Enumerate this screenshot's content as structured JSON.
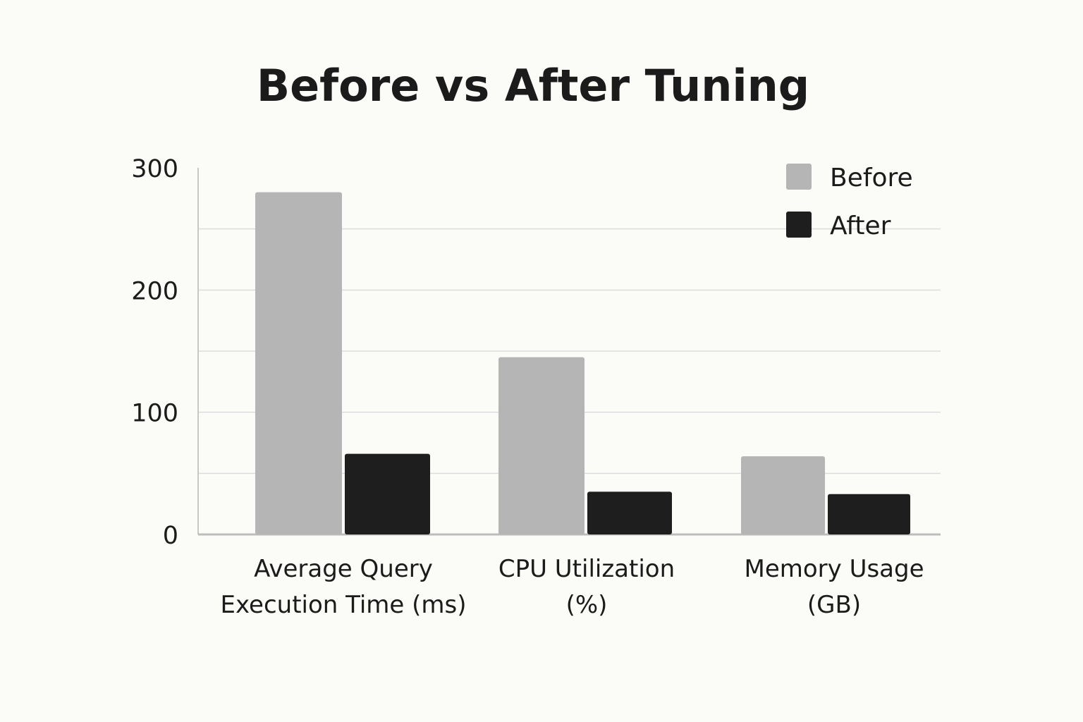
{
  "chart_data": {
    "type": "bar",
    "title": "Before vs After Tuning",
    "categories": [
      [
        "Average Query",
        "Execution Time (ms)"
      ],
      [
        "CPU Utilization",
        "(%)"
      ],
      [
        "Memory Usage",
        "(GB)"
      ]
    ],
    "series": [
      {
        "name": "Before",
        "color": "#b5b5b5",
        "values": [
          280,
          145,
          64
        ]
      },
      {
        "name": "After",
        "color": "#1e1e1e",
        "values": [
          66,
          35,
          33
        ]
      }
    ],
    "yticks": [
      "0",
      "100",
      "200",
      "300"
    ],
    "ylim": [
      0,
      300
    ],
    "grid": true,
    "legend_position": "top-right"
  }
}
